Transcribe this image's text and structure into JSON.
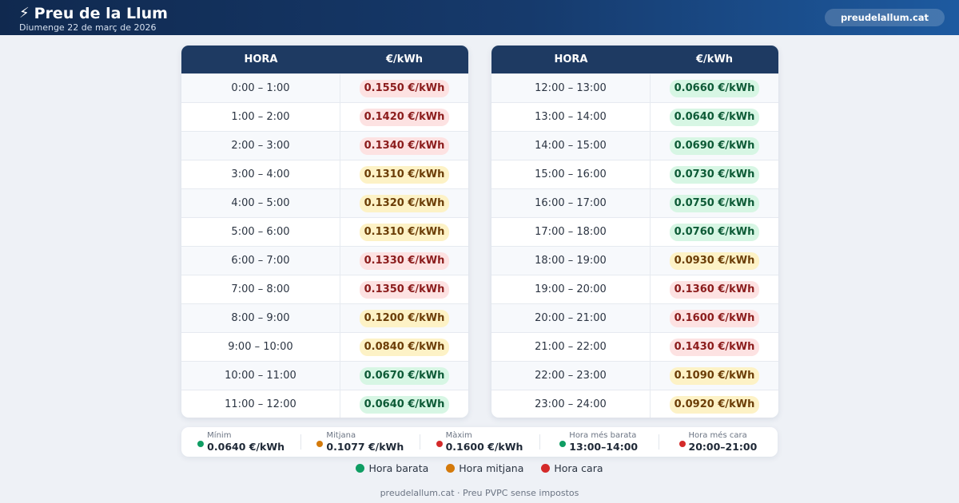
{
  "header": {
    "bolt_icon": "⚡",
    "title": "Preu de la Llum",
    "date": "Diumenge 22 de març de 2026",
    "site": "preudelallum.cat"
  },
  "colors": {
    "low": "#0f9d63",
    "mid": "#d47a0b",
    "high": "#d42a2a",
    "header": "#163a6c"
  },
  "table_headers": {
    "hour": "HORA",
    "price": "€/kWh"
  },
  "hours": [
    {
      "hour": "0:00 – 1:00",
      "price": "0.1550 €/kWh",
      "level": "high"
    },
    {
      "hour": "1:00 – 2:00",
      "price": "0.1420 €/kWh",
      "level": "high"
    },
    {
      "hour": "2:00 – 3:00",
      "price": "0.1340 €/kWh",
      "level": "high"
    },
    {
      "hour": "3:00 – 4:00",
      "price": "0.1310 €/kWh",
      "level": "mid"
    },
    {
      "hour": "4:00 – 5:00",
      "price": "0.1320 €/kWh",
      "level": "mid"
    },
    {
      "hour": "5:00 – 6:00",
      "price": "0.1310 €/kWh",
      "level": "mid"
    },
    {
      "hour": "6:00 – 7:00",
      "price": "0.1330 €/kWh",
      "level": "high"
    },
    {
      "hour": "7:00 – 8:00",
      "price": "0.1350 €/kWh",
      "level": "high"
    },
    {
      "hour": "8:00 – 9:00",
      "price": "0.1200 €/kWh",
      "level": "mid"
    },
    {
      "hour": "9:00 – 10:00",
      "price": "0.0840 €/kWh",
      "level": "mid"
    },
    {
      "hour": "10:00 – 11:00",
      "price": "0.0670 €/kWh",
      "level": "low"
    },
    {
      "hour": "11:00 – 12:00",
      "price": "0.0640 €/kWh",
      "level": "low"
    },
    {
      "hour": "12:00 – 13:00",
      "price": "0.0660 €/kWh",
      "level": "low"
    },
    {
      "hour": "13:00 – 14:00",
      "price": "0.0640 €/kWh",
      "level": "low"
    },
    {
      "hour": "14:00 – 15:00",
      "price": "0.0690 €/kWh",
      "level": "low"
    },
    {
      "hour": "15:00 – 16:00",
      "price": "0.0730 €/kWh",
      "level": "low"
    },
    {
      "hour": "16:00 – 17:00",
      "price": "0.0750 €/kWh",
      "level": "low"
    },
    {
      "hour": "17:00 – 18:00",
      "price": "0.0760 €/kWh",
      "level": "low"
    },
    {
      "hour": "18:00 – 19:00",
      "price": "0.0930 €/kWh",
      "level": "mid"
    },
    {
      "hour": "19:00 – 20:00",
      "price": "0.1360 €/kWh",
      "level": "high"
    },
    {
      "hour": "20:00 – 21:00",
      "price": "0.1600 €/kWh",
      "level": "high"
    },
    {
      "hour": "21:00 – 22:00",
      "price": "0.1430 €/kWh",
      "level": "high"
    },
    {
      "hour": "22:00 – 23:00",
      "price": "0.1090 €/kWh",
      "level": "mid"
    },
    {
      "hour": "23:00 – 24:00",
      "price": "0.0920 €/kWh",
      "level": "mid"
    }
  ],
  "summary": [
    {
      "label": "Mínim",
      "value": "0.0640 €/kWh",
      "level": "low",
      "name": "min"
    },
    {
      "label": "Mitjana",
      "value": "0.1077 €/kWh",
      "level": "mid",
      "name": "avg"
    },
    {
      "label": "Màxim",
      "value": "0.1600 €/kWh",
      "level": "high",
      "name": "max"
    },
    {
      "label": "Hora més barata",
      "value": "13:00–14:00",
      "level": "low",
      "name": "cheapest-hour"
    },
    {
      "label": "Hora més cara",
      "value": "20:00–21:00",
      "level": "high",
      "name": "priciest-hour"
    }
  ],
  "legend": [
    {
      "label": "Hora barata",
      "level": "low"
    },
    {
      "label": "Hora mitjana",
      "level": "mid"
    },
    {
      "label": "Hora cara",
      "level": "high"
    }
  ],
  "footer": "preudelallum.cat · Preu PVPC sense impostos"
}
